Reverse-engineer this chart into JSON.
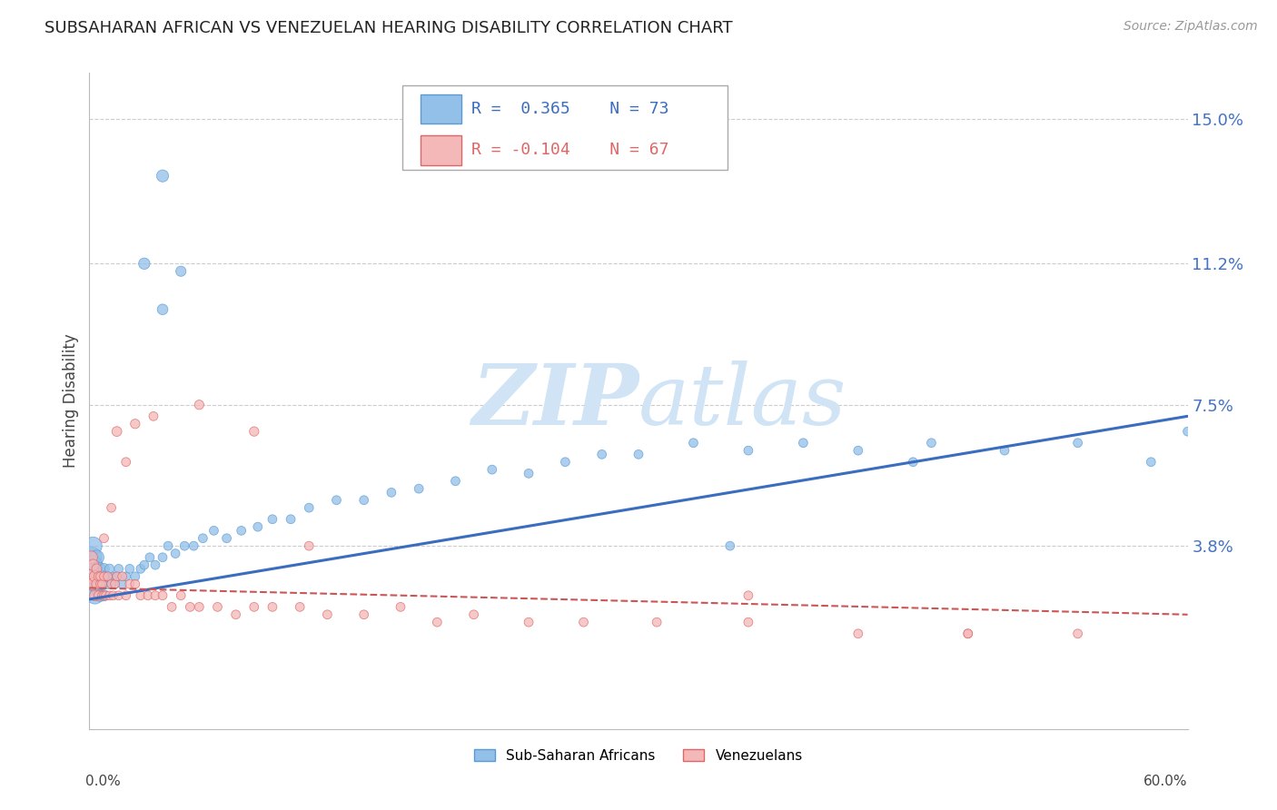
{
  "title": "SUBSAHARAN AFRICAN VS VENEZUELAN HEARING DISABILITY CORRELATION CHART",
  "source": "Source: ZipAtlas.com",
  "ylabel": "Hearing Disability",
  "yticks": [
    0.0,
    0.038,
    0.075,
    0.112,
    0.15
  ],
  "ytick_labels": [
    "",
    "3.8%",
    "7.5%",
    "11.2%",
    "15.0%"
  ],
  "xlim": [
    0.0,
    0.6
  ],
  "ylim": [
    -0.01,
    0.162
  ],
  "color_blue": "#92c0e8",
  "color_pink": "#f4b8b8",
  "color_blue_edge": "#5b9bd5",
  "color_pink_edge": "#e06666",
  "color_line_blue": "#3a6cbf",
  "color_line_pink": "#cc5555",
  "color_ytick": "#4472c4",
  "watermark_color": "#d0e4f5",
  "label1": "Sub-Saharan Africans",
  "label2": "Venezuelans",
  "blue_trendline_x": [
    0.0,
    0.6
  ],
  "blue_trendline_y": [
    0.024,
    0.072
  ],
  "pink_trendline_x": [
    0.0,
    0.6
  ],
  "pink_trendline_y": [
    0.027,
    0.02
  ],
  "blue_scatter": {
    "x": [
      0.001,
      0.001,
      0.002,
      0.002,
      0.002,
      0.003,
      0.003,
      0.003,
      0.004,
      0.004,
      0.005,
      0.005,
      0.006,
      0.006,
      0.007,
      0.007,
      0.008,
      0.008,
      0.009,
      0.01,
      0.01,
      0.011,
      0.012,
      0.013,
      0.014,
      0.015,
      0.016,
      0.018,
      0.02,
      0.022,
      0.025,
      0.028,
      0.03,
      0.033,
      0.036,
      0.04,
      0.043,
      0.047,
      0.052,
      0.057,
      0.062,
      0.068,
      0.075,
      0.083,
      0.092,
      0.1,
      0.11,
      0.12,
      0.135,
      0.15,
      0.165,
      0.18,
      0.2,
      0.22,
      0.24,
      0.26,
      0.28,
      0.3,
      0.33,
      0.36,
      0.39,
      0.42,
      0.46,
      0.5,
      0.54,
      0.58,
      0.6,
      0.03,
      0.04,
      0.05,
      0.04,
      0.35,
      0.45
    ],
    "y": [
      0.03,
      0.035,
      0.028,
      0.033,
      0.038,
      0.025,
      0.032,
      0.028,
      0.03,
      0.035,
      0.028,
      0.032,
      0.03,
      0.025,
      0.028,
      0.03,
      0.025,
      0.032,
      0.03,
      0.028,
      0.03,
      0.032,
      0.028,
      0.03,
      0.028,
      0.03,
      0.032,
      0.028,
      0.03,
      0.032,
      0.03,
      0.032,
      0.033,
      0.035,
      0.033,
      0.035,
      0.038,
      0.036,
      0.038,
      0.038,
      0.04,
      0.042,
      0.04,
      0.042,
      0.043,
      0.045,
      0.045,
      0.048,
      0.05,
      0.05,
      0.052,
      0.053,
      0.055,
      0.058,
      0.057,
      0.06,
      0.062,
      0.062,
      0.065,
      0.063,
      0.065,
      0.063,
      0.065,
      0.063,
      0.065,
      0.06,
      0.068,
      0.112,
      0.1,
      0.11,
      0.135,
      0.038,
      0.06
    ],
    "sizes": [
      350,
      280,
      260,
      220,
      200,
      180,
      160,
      150,
      140,
      130,
      120,
      110,
      100,
      90,
      85,
      80,
      75,
      70,
      65,
      60,
      55,
      55,
      50,
      50,
      50,
      50,
      50,
      50,
      50,
      50,
      50,
      50,
      50,
      50,
      50,
      50,
      50,
      50,
      50,
      50,
      50,
      50,
      50,
      50,
      50,
      50,
      50,
      50,
      50,
      50,
      50,
      50,
      50,
      50,
      50,
      50,
      50,
      50,
      50,
      50,
      50,
      50,
      50,
      50,
      50,
      50,
      50,
      80,
      70,
      65,
      90,
      50,
      50
    ]
  },
  "pink_scatter": {
    "x": [
      0.001,
      0.001,
      0.002,
      0.002,
      0.003,
      0.003,
      0.004,
      0.004,
      0.005,
      0.005,
      0.006,
      0.006,
      0.007,
      0.007,
      0.008,
      0.008,
      0.009,
      0.01,
      0.011,
      0.012,
      0.013,
      0.014,
      0.015,
      0.016,
      0.018,
      0.02,
      0.022,
      0.025,
      0.028,
      0.032,
      0.036,
      0.04,
      0.045,
      0.05,
      0.055,
      0.06,
      0.07,
      0.08,
      0.09,
      0.1,
      0.115,
      0.13,
      0.15,
      0.17,
      0.19,
      0.21,
      0.24,
      0.27,
      0.31,
      0.36,
      0.42,
      0.48,
      0.54,
      0.015,
      0.025,
      0.06,
      0.09,
      0.008,
      0.012,
      0.035,
      0.12,
      0.02,
      0.36,
      0.48
    ],
    "y": [
      0.03,
      0.035,
      0.028,
      0.033,
      0.03,
      0.025,
      0.028,
      0.032,
      0.025,
      0.03,
      0.028,
      0.03,
      0.025,
      0.028,
      0.025,
      0.03,
      0.025,
      0.03,
      0.025,
      0.028,
      0.025,
      0.028,
      0.03,
      0.025,
      0.03,
      0.025,
      0.028,
      0.028,
      0.025,
      0.025,
      0.025,
      0.025,
      0.022,
      0.025,
      0.022,
      0.022,
      0.022,
      0.02,
      0.022,
      0.022,
      0.022,
      0.02,
      0.02,
      0.022,
      0.018,
      0.02,
      0.018,
      0.018,
      0.018,
      0.018,
      0.015,
      0.015,
      0.015,
      0.068,
      0.07,
      0.075,
      0.068,
      0.04,
      0.048,
      0.072,
      0.038,
      0.06,
      0.025,
      0.015
    ],
    "sizes": [
      120,
      100,
      90,
      80,
      75,
      70,
      65,
      60,
      55,
      55,
      50,
      50,
      50,
      50,
      50,
      50,
      50,
      50,
      50,
      50,
      50,
      50,
      50,
      50,
      50,
      50,
      50,
      50,
      50,
      50,
      50,
      50,
      50,
      50,
      50,
      50,
      50,
      50,
      50,
      50,
      50,
      50,
      50,
      50,
      50,
      50,
      50,
      50,
      50,
      50,
      50,
      50,
      50,
      60,
      55,
      55,
      55,
      50,
      50,
      50,
      50,
      50,
      50,
      50
    ]
  }
}
